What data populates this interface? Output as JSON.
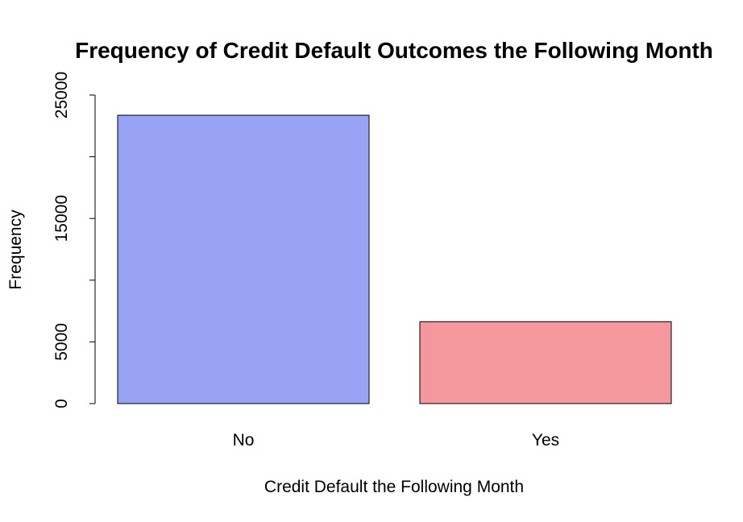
{
  "chart_data": {
    "type": "bar",
    "title": "Frequency of Credit Default Outcomes the Following Month",
    "xlabel": "Credit Default the Following Month",
    "ylabel": "Frequency",
    "categories": [
      "No",
      "Yes"
    ],
    "values": [
      23364,
      6636
    ],
    "colors": [
      "#98a3f5",
      "#f4989d"
    ],
    "ylim": [
      0,
      25000
    ],
    "yticks": [
      0,
      5000,
      10000,
      15000,
      20000,
      25000
    ],
    "ytick_labels": [
      "0",
      "5000",
      "",
      "15000",
      "",
      "25000"
    ],
    "grid": false
  }
}
